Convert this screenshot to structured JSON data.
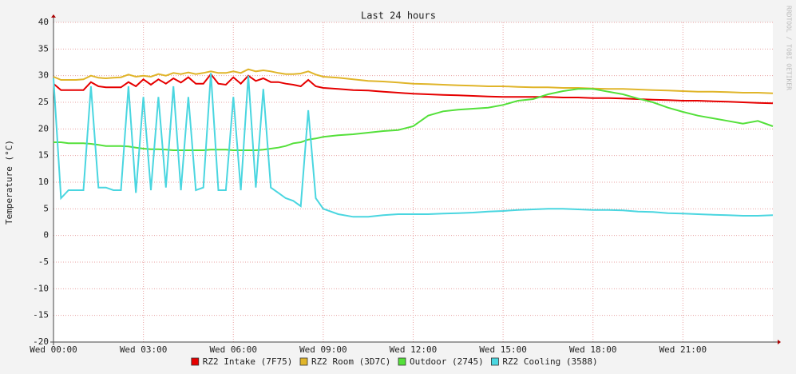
{
  "chart_data": {
    "type": "line",
    "title": "Last 24 hours",
    "y_label": "Temperature (°C)",
    "watermark": "RRDTOOL / TOBI OETIKER",
    "x": [
      0,
      0.25,
      0.5,
      0.75,
      1,
      1.25,
      1.5,
      1.75,
      2,
      2.25,
      2.5,
      2.75,
      3,
      3.25,
      3.5,
      3.75,
      4,
      4.25,
      4.5,
      4.75,
      5,
      5.25,
      5.5,
      5.75,
      6,
      6.25,
      6.5,
      6.75,
      7,
      7.25,
      7.5,
      7.75,
      8,
      8.25,
      8.5,
      8.75,
      9,
      9.5,
      10,
      10.5,
      11,
      11.5,
      12,
      12.5,
      13,
      13.5,
      14,
      14.5,
      15,
      15.5,
      16,
      16.5,
      17,
      17.5,
      18,
      18.5,
      19,
      19.5,
      20,
      20.5,
      21,
      21.5,
      22,
      22.5,
      23,
      23.5,
      24
    ],
    "xlim": [
      0,
      24
    ],
    "xticks": [
      {
        "value": 0,
        "label": "Wed 00:00"
      },
      {
        "value": 3,
        "label": "Wed 03:00"
      },
      {
        "value": 6,
        "label": "Wed 06:00"
      },
      {
        "value": 9,
        "label": "Wed 09:00"
      },
      {
        "value": 12,
        "label": "Wed 12:00"
      },
      {
        "value": 15,
        "label": "Wed 15:00"
      },
      {
        "value": 18,
        "label": "Wed 18:00"
      },
      {
        "value": 21,
        "label": "Wed 21:00"
      }
    ],
    "ylim": [
      -20,
      40
    ],
    "yticks": [
      -20,
      -15,
      -10,
      -5,
      0,
      5,
      10,
      15,
      20,
      25,
      30,
      35,
      40
    ],
    "grid": true,
    "series": [
      {
        "name": "RZ2 Intake (7F75)",
        "color": "#e60000",
        "values": [
          28.5,
          27.3,
          27.3,
          27.3,
          27.3,
          28.8,
          28,
          27.8,
          27.8,
          27.8,
          28.8,
          28,
          29.3,
          28.3,
          29.3,
          28.5,
          29.5,
          28.7,
          29.7,
          28.5,
          28.5,
          30.3,
          28.5,
          28.3,
          29.7,
          28.5,
          30,
          29,
          29.5,
          28.8,
          28.8,
          28.5,
          28.3,
          28,
          29.2,
          28,
          27.7,
          27.5,
          27.3,
          27.2,
          27,
          26.8,
          26.6,
          26.5,
          26.4,
          26.3,
          26.2,
          26.1,
          26,
          26,
          26,
          26,
          25.9,
          25.9,
          25.8,
          25.8,
          25.7,
          25.6,
          25.5,
          25.4,
          25.3,
          25.3,
          25.2,
          25.1,
          25,
          24.9,
          24.8
        ]
      },
      {
        "name": "RZ2 Room (3D7C)",
        "color": "#e0b52a",
        "values": [
          29.8,
          29.2,
          29.2,
          29.2,
          29.3,
          30,
          29.6,
          29.5,
          29.6,
          29.7,
          30.2,
          29.8,
          30,
          29.8,
          30.3,
          30,
          30.5,
          30.3,
          30.6,
          30.3,
          30.5,
          30.8,
          30.5,
          30.5,
          30.8,
          30.5,
          31.2,
          30.8,
          31,
          30.8,
          30.5,
          30.3,
          30.3,
          30.4,
          30.8,
          30.2,
          29.8,
          29.6,
          29.3,
          29,
          28.9,
          28.7,
          28.5,
          28.4,
          28.3,
          28.2,
          28.1,
          28,
          28,
          27.9,
          27.8,
          27.8,
          27.7,
          27.7,
          27.6,
          27.5,
          27.5,
          27.4,
          27.3,
          27.2,
          27.1,
          27,
          27,
          26.9,
          26.8,
          26.8,
          26.7
        ]
      },
      {
        "name": "Outdoor (2745)",
        "color": "#54e03a",
        "values": [
          17.5,
          17.5,
          17.3,
          17.3,
          17.3,
          17.2,
          17,
          16.8,
          16.8,
          16.8,
          16.7,
          16.5,
          16.3,
          16.2,
          16.2,
          16.1,
          16,
          16,
          16,
          16,
          16,
          16.1,
          16.1,
          16.1,
          16,
          16,
          16,
          16,
          16.1,
          16.3,
          16.5,
          16.8,
          17.3,
          17.5,
          18,
          18.2,
          18.5,
          18.8,
          19,
          19.3,
          19.6,
          19.8,
          20.5,
          22.5,
          23.3,
          23.6,
          23.8,
          24,
          24.5,
          25.3,
          25.6,
          26.5,
          27.1,
          27.5,
          27.5,
          27,
          26.5,
          25.7,
          25,
          24,
          23.2,
          22.5,
          22,
          21.5,
          21,
          21.5,
          20.5
        ]
      },
      {
        "name": "RZ2 Cooling (3588)",
        "color": "#4ad6e0",
        "values": [
          29.5,
          7,
          8.5,
          8.5,
          8.5,
          28,
          9,
          9,
          8.5,
          8.5,
          28,
          8,
          26,
          8.5,
          26,
          9,
          28,
          8.5,
          26,
          8.5,
          9,
          30.5,
          8.5,
          8.5,
          26,
          8.5,
          30,
          9,
          27.5,
          9,
          8,
          7,
          6.5,
          5.5,
          23.5,
          7,
          5,
          4,
          3.5,
          3.5,
          3.8,
          4,
          4,
          4,
          4.1,
          4.2,
          4.3,
          4.5,
          4.6,
          4.8,
          4.9,
          5,
          5,
          4.9,
          4.8,
          4.8,
          4.7,
          4.5,
          4.4,
          4.2,
          4.1,
          4,
          3.9,
          3.8,
          3.7,
          3.7,
          3.8
        ]
      }
    ]
  }
}
